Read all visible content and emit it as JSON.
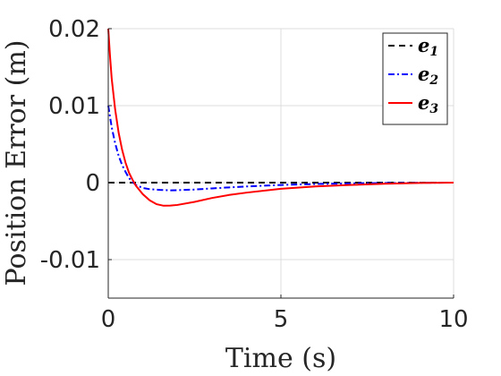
{
  "chart_data": {
    "type": "line",
    "xlabel": "Time (s)",
    "ylabel": "Position Error (m)",
    "xlim": [
      0,
      10
    ],
    "ylim": [
      -0.015,
      0.02
    ],
    "xticks": [
      0,
      5,
      10
    ],
    "xtick_labels": [
      "0",
      "5",
      "10"
    ],
    "yticks": [
      -0.01,
      0,
      0.01,
      0.02
    ],
    "ytick_labels": [
      "-0.01",
      "0",
      "0.01",
      "0.02"
    ],
    "grid": true,
    "legend_position": "top-right",
    "series": [
      {
        "name": "e",
        "subscript": "1",
        "color": "#000000",
        "dash": "dashed",
        "x": [
          0,
          1,
          2,
          3,
          4,
          5,
          6,
          7,
          8,
          9,
          10
        ],
        "y": [
          0,
          0,
          0,
          0,
          0,
          0,
          0,
          0,
          0,
          0,
          0
        ]
      },
      {
        "name": "e",
        "subscript": "2",
        "color": "#0000ff",
        "dash": "dash-dot",
        "x": [
          0,
          0.1,
          0.2,
          0.3,
          0.4,
          0.5,
          0.6,
          0.7,
          0.8,
          1.0,
          1.2,
          1.5,
          1.8,
          2.0,
          2.5,
          3.0,
          3.5,
          4.0,
          5.0,
          6.0,
          7.0,
          8.0,
          9.0,
          10.0
        ],
        "y": [
          0.01,
          0.0072,
          0.0051,
          0.0035,
          0.0023,
          0.0014,
          0.0006,
          0.0001,
          -0.0003,
          -0.0007,
          -0.00085,
          -0.00095,
          -0.001,
          -0.00098,
          -0.0009,
          -0.00075,
          -0.00062,
          -0.0005,
          -0.0003,
          -0.00018,
          -0.0001,
          -5e-05,
          -2e-05,
          0
        ]
      },
      {
        "name": "e",
        "subscript": "3",
        "color": "#ff0000",
        "dash": "solid",
        "x": [
          0,
          0.05,
          0.1,
          0.2,
          0.3,
          0.4,
          0.5,
          0.6,
          0.7,
          0.8,
          1.0,
          1.2,
          1.4,
          1.6,
          1.8,
          2.0,
          2.5,
          3.0,
          3.5,
          4.0,
          5.0,
          6.0,
          7.0,
          8.0,
          9.0,
          10.0
        ],
        "y": [
          0.02,
          0.0165,
          0.0135,
          0.0095,
          0.0065,
          0.0043,
          0.0026,
          0.0013,
          0.0004,
          -0.0004,
          -0.0015,
          -0.0023,
          -0.0028,
          -0.003,
          -0.00298,
          -0.0029,
          -0.0025,
          -0.002,
          -0.0016,
          -0.0013,
          -0.0008,
          -0.0005,
          -0.0003,
          -0.00015,
          -5e-05,
          0
        ]
      }
    ]
  }
}
